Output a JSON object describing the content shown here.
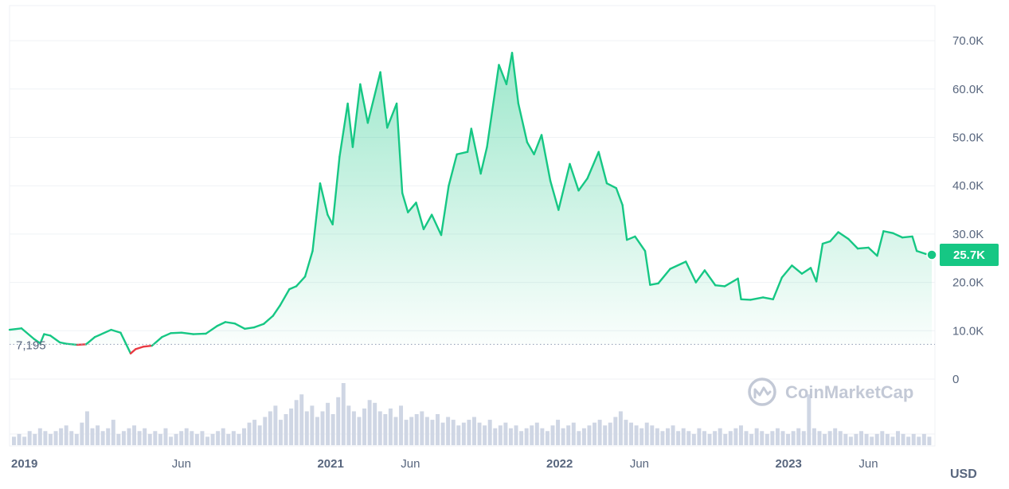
{
  "chart_data": {
    "type": "area",
    "currency_label": "USD",
    "watermark": "CoinMarketCap",
    "y_ticks": [
      "70.0K",
      "60.0K",
      "50.0K",
      "40.0K",
      "30.0K",
      "20.0K",
      "10.0K",
      "0"
    ],
    "y_tick_values": [
      70000,
      60000,
      50000,
      40000,
      30000,
      20000,
      10000,
      0
    ],
    "ylim": [
      0,
      77000
    ],
    "x_ticks": [
      {
        "label": "2019",
        "date": "2019-09-01",
        "major": true
      },
      {
        "label": "Jun",
        "date": "2020-06-01",
        "major": false
      },
      {
        "label": "2021",
        "date": "2021-01-01",
        "major": true
      },
      {
        "label": "Jun",
        "date": "2021-06-01",
        "major": false
      },
      {
        "label": "2022",
        "date": "2022-01-01",
        "major": true
      },
      {
        "label": "Jun",
        "date": "2022-06-01",
        "major": false
      },
      {
        "label": "2023",
        "date": "2023-01-01",
        "major": true
      },
      {
        "label": "Jun",
        "date": "2023-06-01",
        "major": false
      }
    ],
    "xlim": [
      "2019-09-01",
      "2023-09-15"
    ],
    "start_price": 7195,
    "start_price_label": "7,195",
    "current_price_label": "25.7K",
    "colors": {
      "up": "#16c784",
      "down": "#ea3943",
      "grid": "#eff2f5",
      "volume": "#cfd6e4"
    },
    "series": [
      {
        "x": [
          "2019-09-01",
          "2019-09-20",
          "2019-10-10",
          "2019-10-20",
          "2019-10-26",
          "2019-11-05",
          "2019-11-20",
          "2019-12-01",
          "2019-12-18",
          "2020-01-01",
          "2020-01-15",
          "2020-02-10",
          "2020-02-25",
          "2020-03-12",
          "2020-03-20",
          "2020-04-01",
          "2020-04-15",
          "2020-05-01",
          "2020-05-15",
          "2020-06-01",
          "2020-06-20",
          "2020-07-10",
          "2020-07-28",
          "2020-08-10",
          "2020-08-25",
          "2020-09-10",
          "2020-09-25",
          "2020-10-10",
          "2020-10-25",
          "2020-11-05",
          "2020-11-20",
          "2020-12-01",
          "2020-12-15",
          "2020-12-27",
          "2021-01-08",
          "2021-01-20",
          "2021-01-28",
          "2021-02-08",
          "2021-02-21",
          "2021-03-01",
          "2021-03-13",
          "2021-03-25",
          "2021-04-14",
          "2021-04-25",
          "2021-05-10",
          "2021-05-19",
          "2021-05-28",
          "2021-06-10",
          "2021-06-22",
          "2021-07-05",
          "2021-07-20",
          "2021-08-01",
          "2021-08-14",
          "2021-08-31",
          "2021-09-06",
          "2021-09-21",
          "2021-10-01",
          "2021-10-20",
          "2021-11-01",
          "2021-11-10",
          "2021-11-20",
          "2021-12-04",
          "2021-12-15",
          "2021-12-27",
          "2022-01-10",
          "2022-01-23",
          "2022-02-10",
          "2022-02-24",
          "2022-03-10",
          "2022-03-28",
          "2022-04-10",
          "2022-04-25",
          "2022-05-05",
          "2022-05-12",
          "2022-05-25",
          "2022-06-10",
          "2022-06-18",
          "2022-07-01",
          "2022-07-20",
          "2022-08-14",
          "2022-08-30",
          "2022-09-13",
          "2022-09-30",
          "2022-10-15",
          "2022-11-05",
          "2022-11-10",
          "2022-11-25",
          "2022-12-15",
          "2022-12-31",
          "2023-01-14",
          "2023-01-30",
          "2023-02-15",
          "2023-03-01",
          "2023-03-10",
          "2023-03-20",
          "2023-04-01",
          "2023-04-14",
          "2023-04-30",
          "2023-05-15",
          "2023-06-01",
          "2023-06-15",
          "2023-06-25",
          "2023-07-10",
          "2023-07-25",
          "2023-08-10",
          "2023-08-17",
          "2023-08-31",
          "2023-09-10"
        ],
        "values": [
          10200,
          10500,
          8300,
          7400,
          9300,
          9000,
          7600,
          7300,
          7100,
          7200,
          8700,
          10200,
          9600,
          5300,
          6200,
          6700,
          6900,
          8700,
          9500,
          9600,
          9300,
          9400,
          11000,
          11800,
          11500,
          10400,
          10700,
          11400,
          13100,
          15200,
          18600,
          19200,
          21200,
          26500,
          40500,
          34000,
          32000,
          46000,
          57000,
          48000,
          61000,
          53000,
          63500,
          52000,
          57000,
          38500,
          34500,
          36500,
          31000,
          34000,
          29800,
          40000,
          46500,
          47000,
          51800,
          42500,
          48000,
          65000,
          61000,
          67500,
          57000,
          49000,
          46500,
          50500,
          41000,
          35000,
          44500,
          39000,
          41500,
          47000,
          40500,
          39500,
          36000,
          28800,
          29500,
          26500,
          19500,
          19800,
          22800,
          24300,
          20000,
          22500,
          19400,
          19200,
          20800,
          16500,
          16400,
          16900,
          16500,
          21000,
          23500,
          21800,
          23000,
          20200,
          28000,
          28500,
          30400,
          29000,
          27000,
          27200,
          25500,
          30600,
          30200,
          29300,
          29500,
          26500,
          25900,
          25700
        ]
      }
    ],
    "volume": {
      "note_units": "relative",
      "values": [
        3,
        4,
        3,
        5,
        4,
        6,
        5,
        4,
        5,
        6,
        7,
        5,
        4,
        8,
        12,
        6,
        7,
        5,
        6,
        9,
        4,
        5,
        6,
        7,
        5,
        6,
        4,
        5,
        4,
        6,
        3,
        4,
        5,
        6,
        5,
        4,
        5,
        3,
        4,
        5,
        6,
        4,
        5,
        4,
        6,
        8,
        9,
        7,
        10,
        12,
        14,
        9,
        11,
        13,
        16,
        18,
        12,
        14,
        10,
        12,
        15,
        11,
        17,
        22,
        14,
        12,
        10,
        13,
        16,
        15,
        12,
        11,
        13,
        10,
        14,
        9,
        10,
        11,
        12,
        10,
        9,
        11,
        8,
        10,
        9,
        7,
        8,
        9,
        10,
        8,
        7,
        9,
        6,
        7,
        8,
        6,
        7,
        5,
        6,
        7,
        8,
        6,
        5,
        7,
        9,
        6,
        7,
        8,
        5,
        6,
        7,
        8,
        9,
        7,
        8,
        10,
        12,
        9,
        8,
        7,
        6,
        8,
        7,
        6,
        5,
        6,
        7,
        5,
        6,
        5,
        4,
        6,
        5,
        4,
        5,
        6,
        4,
        5,
        6,
        7,
        5,
        4,
        6,
        5,
        4,
        5,
        6,
        5,
        4,
        5,
        6,
        5,
        18,
        6,
        5,
        4,
        5,
        6,
        5,
        4,
        3,
        4,
        5,
        4,
        3,
        4,
        5,
        4,
        3,
        5,
        4,
        3,
        4,
        3,
        4,
        3
      ]
    }
  }
}
